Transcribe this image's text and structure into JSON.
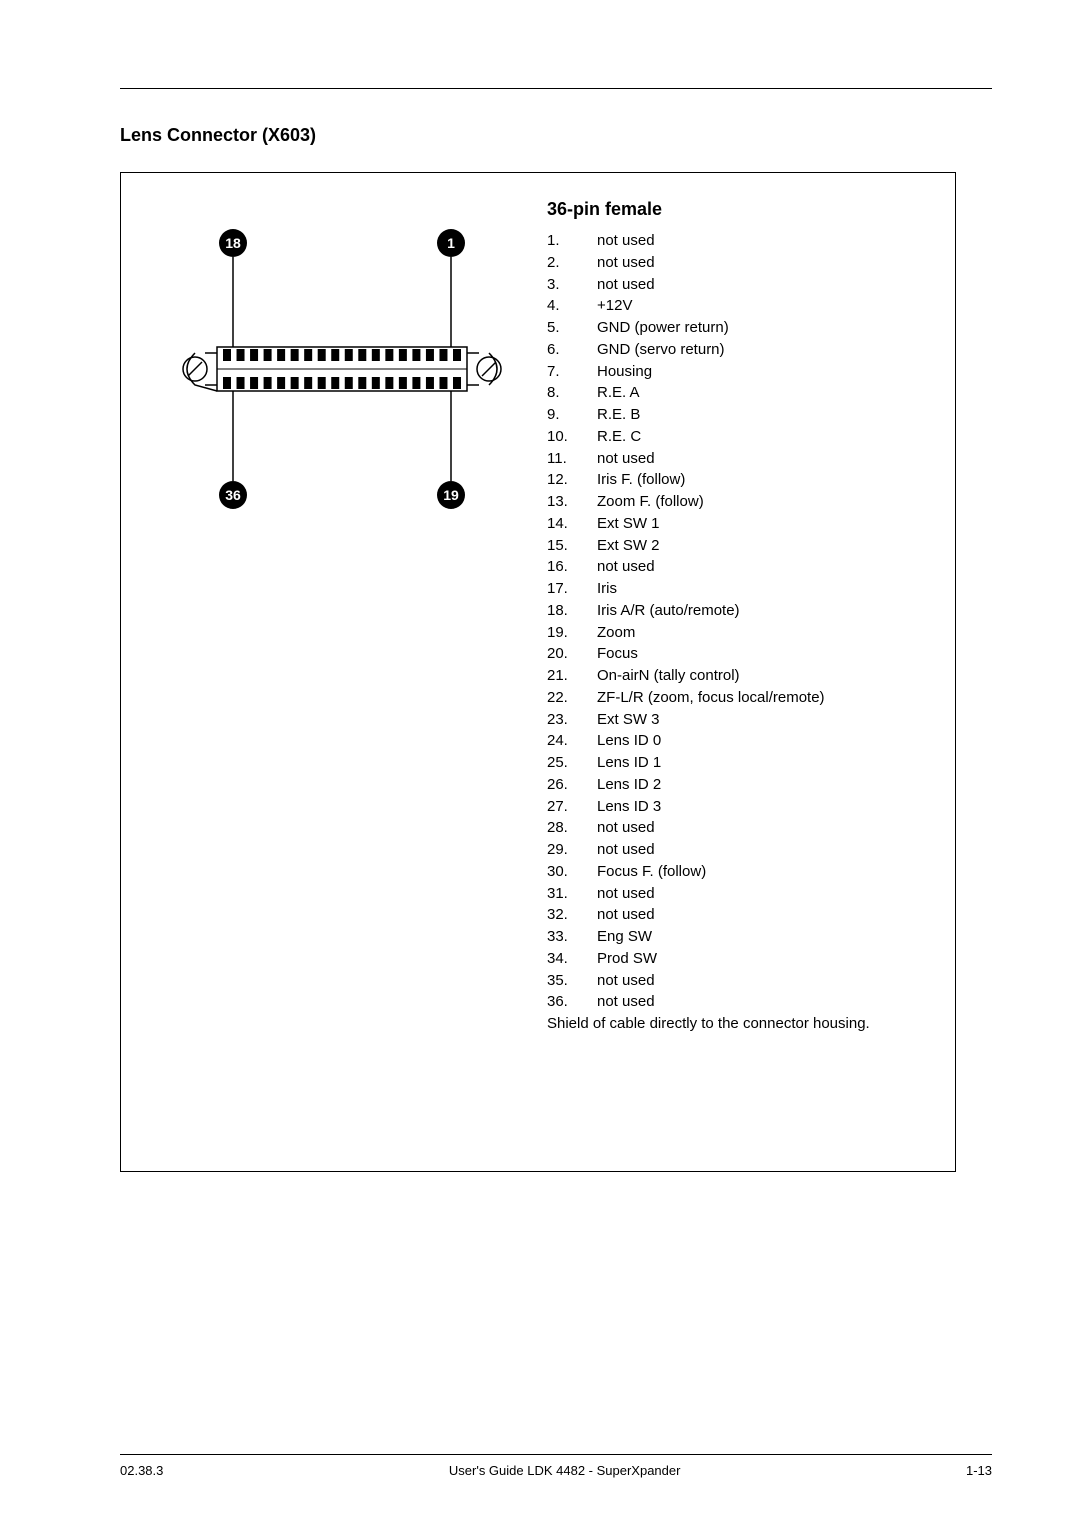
{
  "section_title": "Lens Connector (X603)",
  "connector": {
    "type": "36-pin female",
    "corner_labels": {
      "top_left": "18",
      "top_right": "1",
      "bottom_left": "36",
      "bottom_right": "19"
    },
    "top_row_pins": 18,
    "bottom_row_pins": 18,
    "colors": {
      "badge_fill": "#000000",
      "badge_text": "#ffffff",
      "line": "#000000",
      "pin_fill": "#000000",
      "screw_stroke": "#000000"
    }
  },
  "pinlist_title": "36-pin female",
  "pins": [
    {
      "n": "1.",
      "label": "not used"
    },
    {
      "n": "2.",
      "label": "not used"
    },
    {
      "n": "3.",
      "label": "not used"
    },
    {
      "n": "4.",
      "label": "+12V"
    },
    {
      "n": "5.",
      "label": "GND (power return)"
    },
    {
      "n": "6.",
      "label": "GND (servo return)"
    },
    {
      "n": "7.",
      "label": "Housing"
    },
    {
      "n": "8.",
      "label": "R.E. A"
    },
    {
      "n": "9.",
      "label": "R.E. B"
    },
    {
      "n": "10.",
      "label": "R.E. C"
    },
    {
      "n": "11.",
      "label": "not used"
    },
    {
      "n": "12.",
      "label": "Iris F. (follow)"
    },
    {
      "n": "13.",
      "label": "Zoom F. (follow)"
    },
    {
      "n": "14.",
      "label": "Ext SW 1"
    },
    {
      "n": "15.",
      "label": "Ext SW 2"
    },
    {
      "n": "16.",
      "label": "not used"
    },
    {
      "n": "17.",
      "label": "Iris"
    },
    {
      "n": "18.",
      "label": "Iris A/R (auto/remote)"
    },
    {
      "n": "19.",
      "label": "Zoom"
    },
    {
      "n": "20.",
      "label": "Focus"
    },
    {
      "n": "21.",
      "label": "On-airN (tally control)"
    },
    {
      "n": "22.",
      "label": "ZF-L/R (zoom, focus local/remote)"
    },
    {
      "n": "23.",
      "label": "Ext SW 3"
    },
    {
      "n": "24.",
      "label": "Lens ID 0"
    },
    {
      "n": "25.",
      "label": "Lens ID 1"
    },
    {
      "n": "26.",
      "label": "Lens ID 2"
    },
    {
      "n": "27.",
      "label": "Lens ID 3"
    },
    {
      "n": "28.",
      "label": "not used"
    },
    {
      "n": "29.",
      "label": "not used"
    },
    {
      "n": "30.",
      "label": "Focus F. (follow)"
    },
    {
      "n": "31.",
      "label": "not used"
    },
    {
      "n": "32.",
      "label": "not used"
    },
    {
      "n": "33.",
      "label": "Eng SW"
    },
    {
      "n": "34.",
      "label": "Prod SW"
    },
    {
      "n": "35.",
      "label": "not used"
    },
    {
      "n": "36.",
      "label": "not used"
    }
  ],
  "shield_note": "Shield of cable directly to the connector housing.",
  "footer": {
    "left": "02.38.3",
    "center": "User's Guide LDK 4482 - SuperXpander",
    "right": "1-13"
  }
}
